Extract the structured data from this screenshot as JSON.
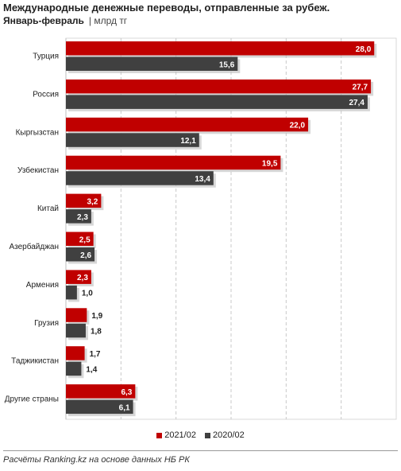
{
  "title": "Международные денежные переводы, отправленные за рубеж.",
  "subtitle_period": "Январь-февраль",
  "subtitle_unit": "| млрд тг",
  "source": "Расчёты Ranking.kz на основе данных НБ РК",
  "colors": {
    "series_2021": "#c00000",
    "series_2020": "#404040",
    "grid": "#c8c8c8"
  },
  "chart_data": {
    "type": "bar",
    "orientation": "horizontal",
    "categories": [
      "Турция",
      "Россия",
      "Кыргызстан",
      "Узбекистан",
      "Китай",
      "Азербайджан",
      "Армения",
      "Грузия",
      "Таджикистан",
      "Другие страны"
    ],
    "series": [
      {
        "name": "2021/02",
        "color": "#c00000",
        "values": [
          28.0,
          27.7,
          22.0,
          19.5,
          3.2,
          2.5,
          2.3,
          1.9,
          1.7,
          6.3
        ],
        "labels": [
          "28,0",
          "27,7",
          "22,0",
          "19,5",
          "3,2",
          "2,5",
          "2,3",
          "1,9",
          "1,7",
          "6,3"
        ]
      },
      {
        "name": "2020/02",
        "color": "#404040",
        "values": [
          15.6,
          27.4,
          12.1,
          13.4,
          2.3,
          2.6,
          1.0,
          1.8,
          1.4,
          6.1
        ],
        "labels": [
          "15,6",
          "27,4",
          "12,1",
          "13,4",
          "2,3",
          "2,6",
          "1,0",
          "1,8",
          "1,4",
          "6,1"
        ]
      }
    ],
    "xlim": [
      0,
      30
    ],
    "grid": "vertical dashed",
    "legend": "bottom-center"
  }
}
